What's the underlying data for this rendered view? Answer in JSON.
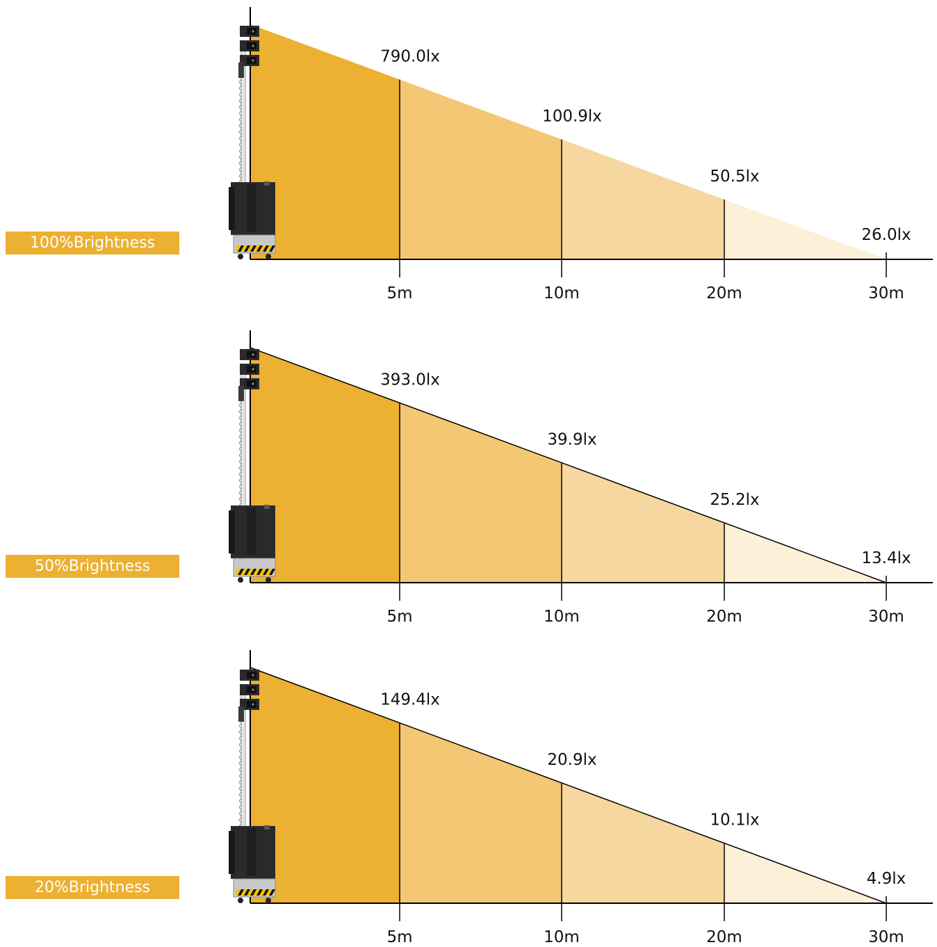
{
  "colors": {
    "badge": "#ecb032",
    "zone_1": "#ecb032",
    "zone_2": "#f3c773",
    "zone_3": "#f6d79f",
    "zone_4": "#fcf0d9",
    "line": "#000000",
    "tower_dark": "#2a2a2a",
    "tower_base": "#c9c9c9"
  },
  "icons": [
    "light-tower-icon"
  ],
  "distances": [
    "5m",
    "10m",
    "20m",
    "30m"
  ],
  "panels": [
    {
      "label": "100%Brightness",
      "readings": [
        "790.0lx",
        "100.9lx",
        "50.5lx",
        "26.0lx"
      ]
    },
    {
      "label": "50%Brightness",
      "readings": [
        "393.0lx",
        "39.9lx",
        "25.2lx",
        "13.4lx"
      ]
    },
    {
      "label": "20%Brightness",
      "readings": [
        "149.4lx",
        "20.9lx",
        "10.1lx",
        "4.9lx"
      ]
    }
  ]
}
